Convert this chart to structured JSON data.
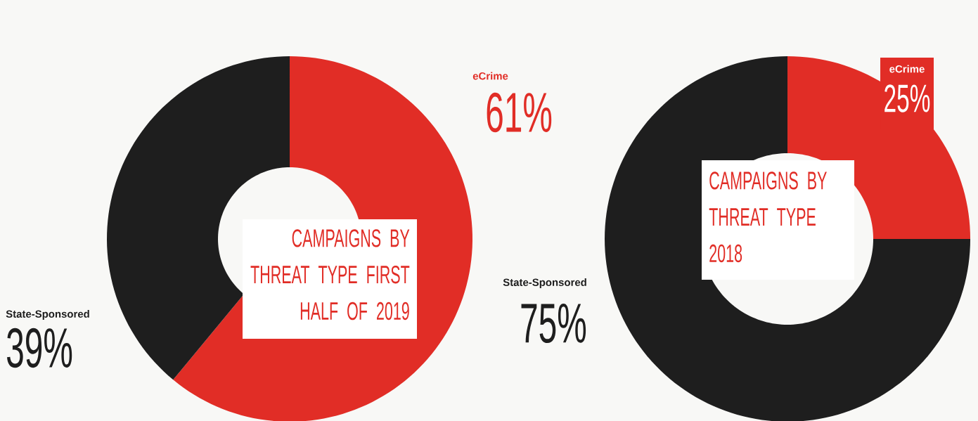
{
  "chart_data": [
    {
      "type": "donut",
      "title": "CAMPAIGNS BY THREAT TYPE FIRST HALF OF 2019",
      "categories": [
        "eCrime",
        "State-Sponsored"
      ],
      "values": [
        61,
        39
      ],
      "colors": [
        "#e12d26",
        "#1e1e1e"
      ],
      "value_labels": [
        "61%",
        "39%"
      ]
    },
    {
      "type": "donut",
      "title": "CAMPAIGNS BY THREAT TYPE 2018",
      "categories": [
        "eCrime",
        "State-Sponsored"
      ],
      "values": [
        25,
        75
      ],
      "colors": [
        "#e12d26",
        "#1e1e1e"
      ],
      "value_labels": [
        "25%",
        "75%"
      ]
    }
  ]
}
